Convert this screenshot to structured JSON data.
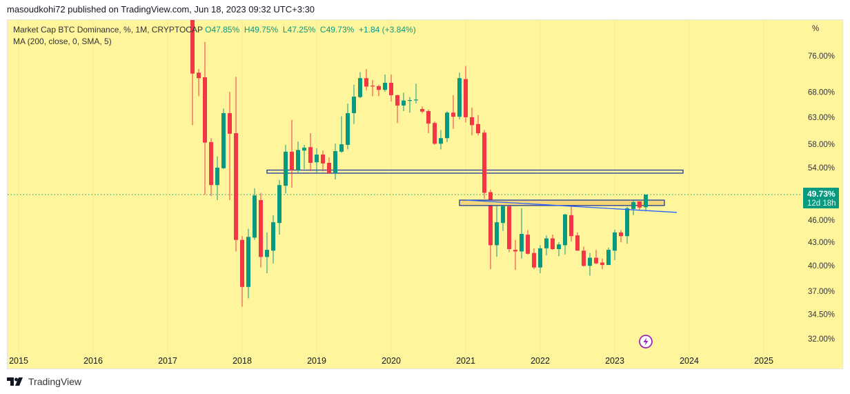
{
  "header": {
    "text": "masoudkohi72 published on TradingView.com, Jun 18, 2023 09:32 UTC+3:30"
  },
  "legend": {
    "title": "Market Cap BTC Dominance, %, 1M, CRYPTOCAP",
    "open": "O47.85%",
    "high": "H49.75%",
    "low": "L47.25%",
    "close": "C49.73%",
    "change": "+1.84 (+3.84%)",
    "indicator": "MA (200, close, 0, SMA, 5)"
  },
  "footer": {
    "brand": "TradingView"
  },
  "colors": {
    "up": "#089981",
    "down": "#f23645",
    "background": "#fff59d",
    "zone_blue": "#1e3a9e",
    "zone_orange": "#f5d77a",
    "trendline": "#2962ff",
    "idea_marker": "#9c27b0"
  },
  "price_label": {
    "value": "49.73%",
    "countdown": "12d 18h"
  },
  "chart_data": {
    "type": "candlestick",
    "title": "Market Cap BTC Dominance, %, 1M, CRYPTOCAP",
    "scale": "log",
    "ylim": [
      30.5,
      82
    ],
    "y_unit_label": "%",
    "y_ticks": [
      "76.00%",
      "68.00%",
      "63.00%",
      "58.00%",
      "54.00%",
      "46.00%",
      "43.00%",
      "40.00%",
      "37.00%",
      "34.50%",
      "32.00%"
    ],
    "y_tick_values": [
      76,
      68,
      63,
      58,
      54,
      46,
      43,
      40,
      37,
      34.5,
      32
    ],
    "x_ticks": [
      "2015",
      "2016",
      "2017",
      "2018",
      "2019",
      "2020",
      "2021",
      "2022",
      "2023",
      "2024",
      "2025"
    ],
    "start_month": "2017-05",
    "ohlc": [
      [
        86,
        90,
        61.5,
        72.0
      ],
      [
        72.2,
        73.0,
        67.2,
        71.0
      ],
      [
        71.2,
        79.3,
        49.7,
        58.3
      ],
      [
        58.4,
        59.1,
        49.5,
        51.2
      ],
      [
        51.2,
        55.9,
        48.9,
        54.0
      ],
      [
        53.9,
        64.7,
        53.8,
        63.8
      ],
      [
        63.8,
        68.1,
        48.9,
        59.9
      ],
      [
        60.0,
        71.3,
        41.8,
        43.3
      ],
      [
        43.3,
        43.8,
        35.3,
        37.5
      ],
      [
        37.5,
        44.8,
        36.2,
        43.7
      ],
      [
        43.6,
        50.7,
        43.3,
        49.6
      ],
      [
        48.9,
        50.0,
        39.8,
        41.1
      ],
      [
        41.1,
        44.3,
        39.1,
        42.0
      ],
      [
        41.9,
        46.7,
        40.3,
        45.7
      ],
      [
        45.6,
        52.0,
        44.0,
        51.2
      ],
      [
        51.1,
        57.9,
        49.9,
        56.7
      ],
      [
        56.7,
        62.5,
        50.8,
        53.6
      ],
      [
        53.6,
        58.5,
        53.1,
        57.0
      ],
      [
        56.9,
        57.9,
        53.8,
        57.4
      ],
      [
        57.5,
        60.0,
        53.4,
        54.8
      ],
      [
        54.9,
        57.3,
        53.2,
        56.2
      ],
      [
        56.2,
        56.9,
        53.4,
        54.7
      ],
      [
        54.8,
        55.7,
        53.0,
        53.1
      ],
      [
        53.1,
        58.1,
        52.1,
        56.8
      ],
      [
        56.7,
        63.2,
        56.5,
        58.0
      ],
      [
        57.9,
        65.7,
        57.1,
        63.8
      ],
      [
        63.8,
        69.6,
        61.7,
        67.1
      ],
      [
        67.0,
        72.3,
        66.8,
        71.0
      ],
      [
        71.0,
        73.0,
        68.4,
        69.2
      ],
      [
        69.4,
        70.6,
        67.2,
        69.3
      ],
      [
        69.3,
        69.6,
        67.2,
        68.5
      ],
      [
        68.5,
        71.8,
        68.1,
        70.0
      ],
      [
        70.0,
        71.8,
        66.1,
        67.4
      ],
      [
        67.4,
        67.5,
        61.9,
        65.3
      ],
      [
        65.3,
        67.9,
        64.2,
        66.3
      ],
      [
        66.3,
        67.0,
        63.9,
        66.4
      ],
      [
        66.4,
        69.8,
        65.7,
        66.5
      ],
      [
        64.6,
        65.1,
        63.8,
        64.1
      ],
      [
        64.2,
        64.5,
        60.0,
        61.8
      ],
      [
        61.9,
        62.2,
        57.9,
        58.1
      ],
      [
        58.1,
        60.6,
        57.1,
        59.1
      ],
      [
        59.1,
        64.2,
        58.4,
        63.9
      ],
      [
        63.9,
        67.4,
        60.8,
        63.1
      ],
      [
        63.1,
        72.2,
        62.6,
        71.0
      ],
      [
        70.8,
        73.7,
        62.0,
        63.0
      ],
      [
        63.0,
        64.9,
        59.6,
        61.5
      ],
      [
        61.7,
        63.4,
        59.6,
        60.0
      ],
      [
        60.1,
        60.6,
        49.1,
        50.0
      ],
      [
        50.1,
        50.5,
        39.6,
        42.6
      ],
      [
        42.6,
        48.2,
        41.1,
        45.7
      ],
      [
        45.6,
        48.9,
        44.5,
        48.0
      ],
      [
        48.0,
        48.0,
        41.7,
        42.1
      ],
      [
        42.0,
        43.3,
        39.5,
        41.8
      ],
      [
        41.8,
        47.7,
        40.9,
        44.1
      ],
      [
        44.0,
        44.6,
        41.4,
        41.5
      ],
      [
        41.6,
        42.2,
        39.6,
        39.8
      ],
      [
        39.8,
        42.6,
        39.1,
        42.2
      ],
      [
        42.2,
        43.9,
        41.3,
        43.5
      ],
      [
        43.5,
        44.0,
        42.0,
        42.1
      ],
      [
        42.1,
        43.0,
        41.2,
        42.7
      ],
      [
        42.6,
        46.9,
        41.4,
        46.8
      ],
      [
        46.7,
        48.4,
        43.1,
        43.8
      ],
      [
        43.9,
        44.3,
        41.9,
        41.9
      ],
      [
        41.9,
        42.4,
        39.9,
        40.0
      ],
      [
        40.0,
        41.6,
        38.8,
        41.0
      ],
      [
        41.0,
        42.0,
        40.2,
        40.3
      ],
      [
        40.4,
        40.9,
        39.6,
        40.1
      ],
      [
        40.1,
        42.3,
        40.1,
        42.0
      ],
      [
        41.9,
        44.7,
        40.7,
        44.3
      ],
      [
        44.3,
        44.6,
        43.0,
        43.8
      ],
      [
        43.8,
        47.9,
        42.8,
        47.7
      ],
      [
        47.6,
        48.9,
        46.7,
        48.6
      ],
      [
        48.7,
        48.7,
        47.4,
        47.8
      ],
      [
        47.85,
        49.75,
        47.25,
        49.73
      ]
    ],
    "last_close": 49.73,
    "drawings": {
      "blue_zone": {
        "from": "2018-05",
        "to": "2023-12",
        "top": 53.6,
        "bottom": 53.1
      },
      "orange_zone": {
        "from": "2020-12",
        "to": "2023-09",
        "top": 48.9,
        "bottom": 48.1
      },
      "trendline": {
        "from": "2021-01",
        "to": "2023-11",
        "start": 48.9,
        "end": 47.1
      }
    }
  }
}
